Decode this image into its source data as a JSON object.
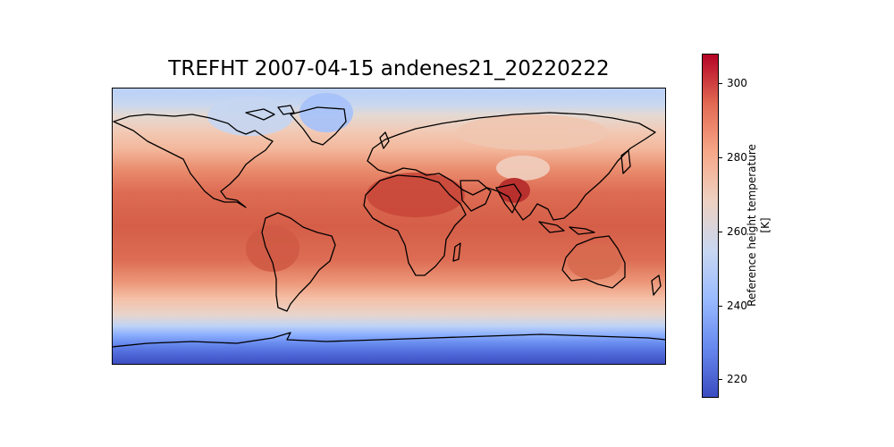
{
  "title": "TREFHT 2007-04-15 andenes21_20220222",
  "colorbar": {
    "label_line1": "Reference height temperature",
    "label_line2": "[K]",
    "vmin": 215,
    "vmax": 308,
    "ticks": [
      {
        "value": 220,
        "label": "220"
      },
      {
        "value": 240,
        "label": "240"
      },
      {
        "value": 260,
        "label": "260"
      },
      {
        "value": 280,
        "label": "280"
      },
      {
        "value": 300,
        "label": "300"
      }
    ],
    "colormap": "coolwarm",
    "colors": [
      "#3b4cc0",
      "#6788ee",
      "#9abbff",
      "#c9d7f0",
      "#edd1c2",
      "#f7a889",
      "#e26952",
      "#b40426"
    ]
  },
  "map": {
    "projection": "PlateCarree",
    "extent_lon": [
      -180,
      180
    ],
    "extent_lat": [
      -90,
      90
    ],
    "coastlines": true
  }
}
